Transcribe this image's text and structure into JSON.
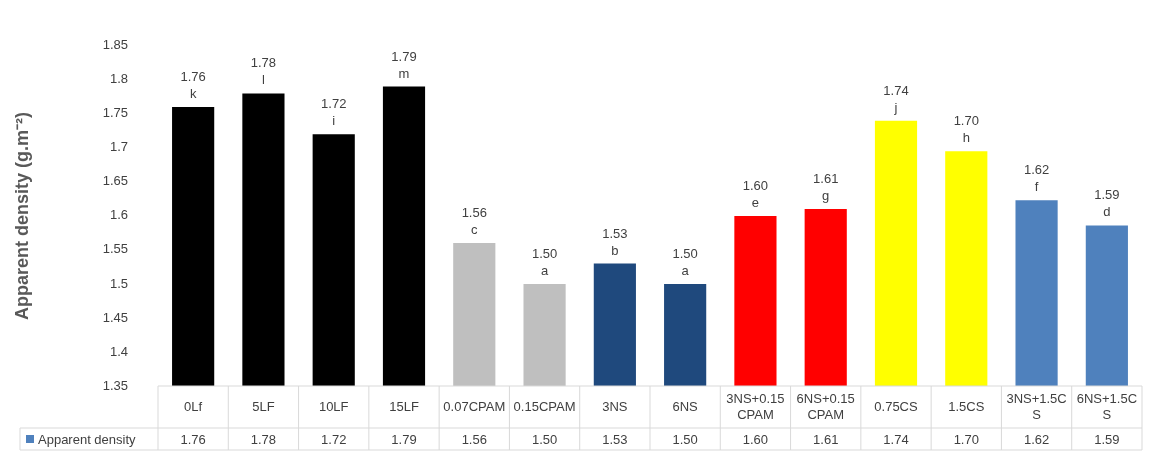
{
  "chart_data": {
    "type": "bar",
    "ylabel": "Apparent density (g.m⁻²)",
    "categories": [
      "0Lf",
      "5LF",
      "10LF",
      "15LF",
      "0.07CPAM",
      "0.15CPAM",
      "3NS",
      "6NS",
      "3NS+0.15CPAM",
      "6NS+0.15CPAM",
      "0.75CS",
      "1.5CS",
      "3NS+1.5CS",
      "6NS+1.5CS"
    ],
    "series": [
      {
        "name": "Apparent density",
        "color": "#4f81bd",
        "colors": [
          "#000000",
          "#000000",
          "#000000",
          "#000000",
          "#bfbfbf",
          "#bfbfbf",
          "#1f497d",
          "#1f497d",
          "#ff0000",
          "#ff0000",
          "#ffff00",
          "#ffff00",
          "#4f81bd",
          "#4f81bd"
        ],
        "values": [
          1.76,
          1.78,
          1.72,
          1.79,
          1.56,
          1.5,
          1.53,
          1.5,
          1.6,
          1.61,
          1.74,
          1.695,
          1.623,
          1.586
        ],
        "value_labels": [
          "1.76",
          "1.78",
          "1.72",
          "1.79",
          "1.56",
          "1.50",
          "1.53",
          "1.50",
          "1.60",
          "1.61",
          "1.74",
          "1.70",
          "1.62",
          "1.59"
        ]
      }
    ],
    "ylim": [
      1.35,
      1.85
    ],
    "yticks": [
      1.35,
      1.4,
      1.45,
      1.5,
      1.55,
      1.6,
      1.65,
      1.7,
      1.75,
      1.8,
      1.85
    ],
    "grid": false,
    "legend": "bottom",
    "annotations": [
      {
        "text": "k",
        "x": "0Lf",
        "y": 1.76
      },
      {
        "text": "l",
        "x": "5LF",
        "y": 1.78
      },
      {
        "text": "i",
        "x": "10LF",
        "y": 1.72
      },
      {
        "text": "m",
        "x": "15LF",
        "y": 1.79
      },
      {
        "text": "c",
        "x": "0.07CPAM",
        "y": 1.56
      },
      {
        "text": "a",
        "x": "0.15CPAM",
        "y": 1.5
      },
      {
        "text": "b",
        "x": "3NS",
        "y": 1.53
      },
      {
        "text": "a",
        "x": "6NS",
        "y": 1.5
      },
      {
        "text": "e",
        "x": "3NS+0.15CPAM",
        "y": 1.6
      },
      {
        "text": "g",
        "x": "6NS+0.15CPAM",
        "y": 1.61
      },
      {
        "text": "j",
        "x": "0.75CS",
        "y": 1.74
      },
      {
        "text": "h",
        "x": "1.5CS",
        "y": 1.695
      },
      {
        "text": "f",
        "x": "3NS+1.5CS",
        "y": 1.623
      },
      {
        "text": "d",
        "x": "6NS+1.5CS",
        "y": 1.586
      }
    ]
  }
}
